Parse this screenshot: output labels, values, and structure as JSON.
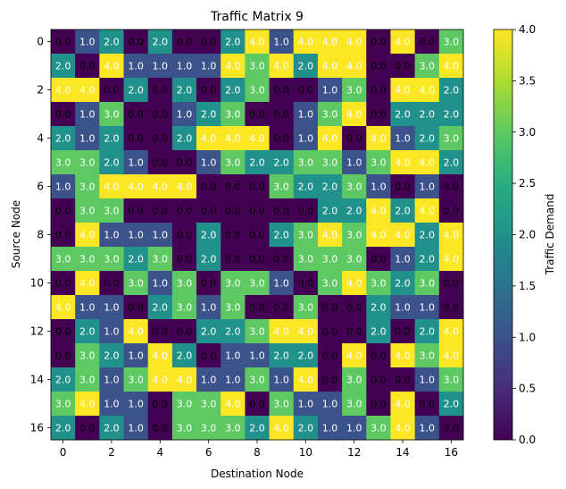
{
  "chart_data": {
    "type": "heatmap",
    "title": "Traffic Matrix 9",
    "xlabel": "Destination Node",
    "ylabel": "Source Node",
    "colorbar_label": "Traffic Demand",
    "colormap": "viridis",
    "vmin": 0,
    "vmax": 4,
    "colorbar_ticks": [
      "0.0",
      "0.5",
      "1.0",
      "1.5",
      "2.0",
      "2.5",
      "3.0",
      "3.5",
      "4.0"
    ],
    "x_ticks": [
      "0",
      "2",
      "4",
      "6",
      "8",
      "10",
      "12",
      "14",
      "16"
    ],
    "y_ticks": [
      "0",
      "2",
      "4",
      "6",
      "8",
      "10",
      "12",
      "14",
      "16"
    ],
    "values": [
      [
        0,
        1,
        2,
        0,
        2,
        0,
        0,
        2,
        4,
        1,
        4,
        4,
        4,
        0,
        4,
        0,
        3
      ],
      [
        2,
        0,
        4,
        1,
        1,
        1,
        1,
        4,
        3,
        4,
        2,
        4,
        4,
        0,
        0,
        3,
        4
      ],
      [
        4,
        4,
        0,
        2,
        0,
        2,
        0,
        2,
        3,
        0,
        0,
        1,
        3,
        0,
        4,
        4,
        2
      ],
      [
        0,
        1,
        3,
        0,
        0,
        1,
        2,
        3,
        0,
        0,
        1,
        3,
        4,
        0,
        2,
        2,
        2
      ],
      [
        2,
        1,
        2,
        0,
        0,
        2,
        4,
        4,
        4,
        0,
        1,
        4,
        0,
        4,
        1,
        2,
        3
      ],
      [
        3,
        3,
        2,
        1,
        0,
        0,
        1,
        3,
        2,
        2,
        3,
        3,
        1,
        3,
        4,
        4,
        2
      ],
      [
        1,
        3,
        4,
        4,
        4,
        4,
        0,
        0,
        0,
        3,
        2,
        2,
        3,
        1,
        0,
        1,
        0
      ],
      [
        0,
        3,
        3,
        0,
        0,
        0,
        0,
        0,
        0,
        0,
        0,
        2,
        2,
        4,
        2,
        4,
        0
      ],
      [
        0,
        4,
        1,
        1,
        1,
        0,
        2,
        0,
        0,
        2,
        3,
        4,
        3,
        4,
        4,
        2,
        4
      ],
      [
        3,
        3,
        3,
        2,
        3,
        0,
        2,
        0,
        0,
        0,
        3,
        3,
        3,
        0,
        1,
        2,
        4
      ],
      [
        0,
        4,
        0,
        3,
        1,
        3,
        0,
        3,
        3,
        1,
        0,
        3,
        4,
        3,
        2,
        3,
        0
      ],
      [
        4,
        1,
        1,
        0,
        2,
        3,
        1,
        3,
        0,
        0,
        3,
        0,
        0,
        2,
        1,
        1,
        0
      ],
      [
        0,
        2,
        1,
        4,
        0,
        0,
        2,
        2,
        3,
        4,
        4,
        0,
        0,
        2,
        0,
        2,
        4
      ],
      [
        0,
        3,
        2,
        1,
        4,
        2,
        0,
        1,
        1,
        2,
        2,
        0,
        4,
        0,
        4,
        3,
        4
      ],
      [
        2,
        3,
        1,
        3,
        4,
        4,
        1,
        1,
        3,
        1,
        4,
        0,
        3,
        0,
        0,
        1,
        3
      ],
      [
        3,
        4,
        1,
        1,
        0,
        3,
        3,
        4,
        0,
        3,
        1,
        1,
        3,
        0,
        4,
        0,
        2
      ],
      [
        2,
        0,
        2,
        1,
        0,
        3,
        3,
        3,
        2,
        4,
        2,
        1,
        1,
        3,
        4,
        1,
        0
      ]
    ]
  }
}
